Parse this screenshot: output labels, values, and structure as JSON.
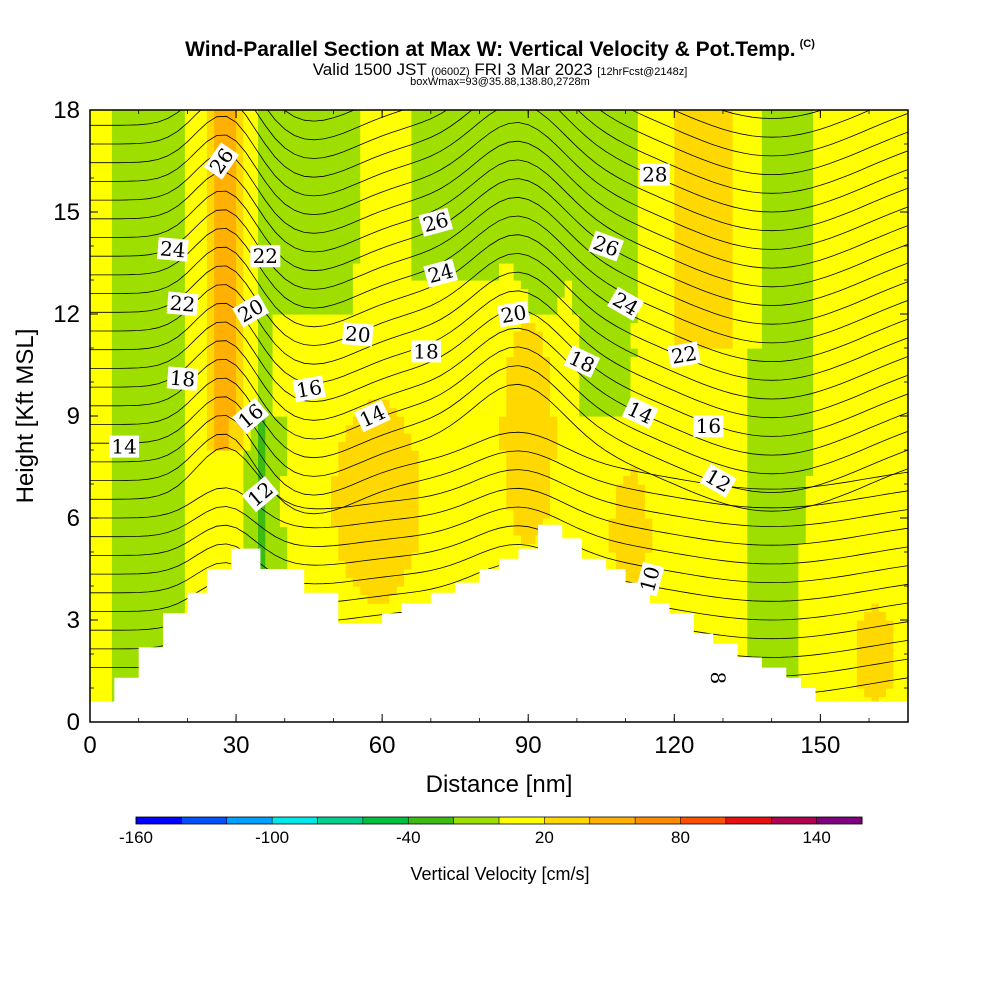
{
  "header": {
    "title": "Wind-Parallel Section at Max W: Vertical Velocity & Pot.Temp.",
    "copyright": "(C)",
    "valid_prefix": "Valid 1500 JST",
    "valid_utc": "(0600Z)",
    "valid_date": "FRI 3 Mar 2023",
    "forecast": "[12hrFcst@2148z]",
    "box_info": "boxWmax=93@35.88,138.80,2728m"
  },
  "chart_data": {
    "type": "heatmap",
    "xlabel": "Distance [nm]",
    "ylabel": "Height [Kft MSL]",
    "xlim": [
      0,
      168
    ],
    "ylim": [
      0,
      18
    ],
    "x_ticks": [
      0,
      30,
      60,
      90,
      120,
      150
    ],
    "y_ticks": [
      0,
      3,
      6,
      9,
      12,
      15,
      18
    ],
    "colorbar": {
      "label": "Vertical Velocity [cm/s]",
      "tick_labels": [
        -160,
        -100,
        -40,
        20,
        80,
        140
      ],
      "levels": [
        -160,
        -140,
        -120,
        -100,
        -80,
        -60,
        -40,
        -20,
        0,
        20,
        40,
        60,
        80,
        100,
        120,
        140,
        160
      ],
      "colors": [
        "#0000ff",
        "#0050ff",
        "#00a0ff",
        "#00e8e8",
        "#00d090",
        "#00c040",
        "#3cbb10",
        "#9edf00",
        "#ffff00",
        "#ffd800",
        "#ffb000",
        "#ff8c00",
        "#ff5000",
        "#e81010",
        "#b00050",
        "#800080"
      ]
    },
    "terrain_profile": [
      [
        0,
        0.6
      ],
      [
        5,
        0.6
      ],
      [
        5,
        1.3
      ],
      [
        10,
        1.3
      ],
      [
        10,
        2.2
      ],
      [
        15,
        2.2
      ],
      [
        15,
        3.2
      ],
      [
        20,
        3.2
      ],
      [
        20,
        3.8
      ],
      [
        24,
        3.8
      ],
      [
        24,
        4.5
      ],
      [
        29,
        4.5
      ],
      [
        29,
        5.1
      ],
      [
        35,
        5.1
      ],
      [
        35,
        4.5
      ],
      [
        44,
        4.5
      ],
      [
        44,
        3.8
      ],
      [
        51,
        3.8
      ],
      [
        51,
        2.9
      ],
      [
        60,
        2.9
      ],
      [
        60,
        3.2
      ],
      [
        64,
        3.2
      ],
      [
        64,
        3.5
      ],
      [
        70,
        3.5
      ],
      [
        70,
        3.8
      ],
      [
        75,
        3.8
      ],
      [
        75,
        4.1
      ],
      [
        80,
        4.1
      ],
      [
        80,
        4.5
      ],
      [
        84,
        4.5
      ],
      [
        84,
        4.8
      ],
      [
        88,
        4.8
      ],
      [
        88,
        5.1
      ],
      [
        92,
        5.1
      ],
      [
        92,
        5.8
      ],
      [
        97,
        5.8
      ],
      [
        97,
        5.4
      ],
      [
        101,
        5.4
      ],
      [
        101,
        4.8
      ],
      [
        106,
        4.8
      ],
      [
        106,
        4.5
      ],
      [
        110,
        4.5
      ],
      [
        110,
        4.1
      ],
      [
        115,
        4.1
      ],
      [
        115,
        3.5
      ],
      [
        119,
        3.5
      ],
      [
        119,
        3.2
      ],
      [
        124,
        3.2
      ],
      [
        124,
        2.6
      ],
      [
        128,
        2.6
      ],
      [
        128,
        2.3
      ],
      [
        133,
        2.3
      ],
      [
        133,
        1.9
      ],
      [
        138,
        1.9
      ],
      [
        138,
        1.6
      ],
      [
        143,
        1.6
      ],
      [
        143,
        1.3
      ],
      [
        146,
        1.3
      ],
      [
        146,
        1.0
      ],
      [
        149,
        1.0
      ],
      [
        149,
        0.6
      ],
      [
        168,
        0.6
      ]
    ],
    "theta_contour_labels": [
      {
        "text": "26",
        "x": 27,
        "y": 16.5,
        "rot": -55
      },
      {
        "text": "24",
        "x": 17,
        "y": 13.9,
        "rot": 5
      },
      {
        "text": "22",
        "x": 36,
        "y": 13.7,
        "rot": 0
      },
      {
        "text": "22",
        "x": 19,
        "y": 12.3,
        "rot": 5
      },
      {
        "text": "20",
        "x": 33,
        "y": 12.1,
        "rot": -30
      },
      {
        "text": "18",
        "x": 19,
        "y": 10.1,
        "rot": 5
      },
      {
        "text": "16",
        "x": 33,
        "y": 9.0,
        "rot": -40
      },
      {
        "text": "16",
        "x": 45,
        "y": 9.8,
        "rot": -10
      },
      {
        "text": "14",
        "x": 7,
        "y": 8.1,
        "rot": 0
      },
      {
        "text": "14",
        "x": 58,
        "y": 9.0,
        "rot": -25
      },
      {
        "text": "12",
        "x": 35,
        "y": 6.7,
        "rot": -40
      },
      {
        "text": "20",
        "x": 55,
        "y": 11.4,
        "rot": 5
      },
      {
        "text": "18",
        "x": 69,
        "y": 10.9,
        "rot": 0
      },
      {
        "text": "26",
        "x": 71,
        "y": 14.7,
        "rot": -15
      },
      {
        "text": "24",
        "x": 72,
        "y": 13.2,
        "rot": -15
      },
      {
        "text": "20",
        "x": 87,
        "y": 12.0,
        "rot": -10
      },
      {
        "text": "18",
        "x": 101,
        "y": 10.6,
        "rot": 25
      },
      {
        "text": "26",
        "x": 106,
        "y": 14.0,
        "rot": 20
      },
      {
        "text": "24",
        "x": 110,
        "y": 12.3,
        "rot": 30
      },
      {
        "text": "28",
        "x": 116,
        "y": 16.1,
        "rot": 0
      },
      {
        "text": "22",
        "x": 122,
        "y": 10.8,
        "rot": -10
      },
      {
        "text": "14",
        "x": 113,
        "y": 9.1,
        "rot": 25
      },
      {
        "text": "16",
        "x": 127,
        "y": 8.7,
        "rot": 0
      },
      {
        "text": "12",
        "x": 129,
        "y": 7.1,
        "rot": 30
      },
      {
        "text": "10",
        "x": 115,
        "y": 4.2,
        "rot": -75
      },
      {
        "text": "8",
        "x": 129,
        "y": 1.3,
        "rot": 90
      }
    ]
  }
}
